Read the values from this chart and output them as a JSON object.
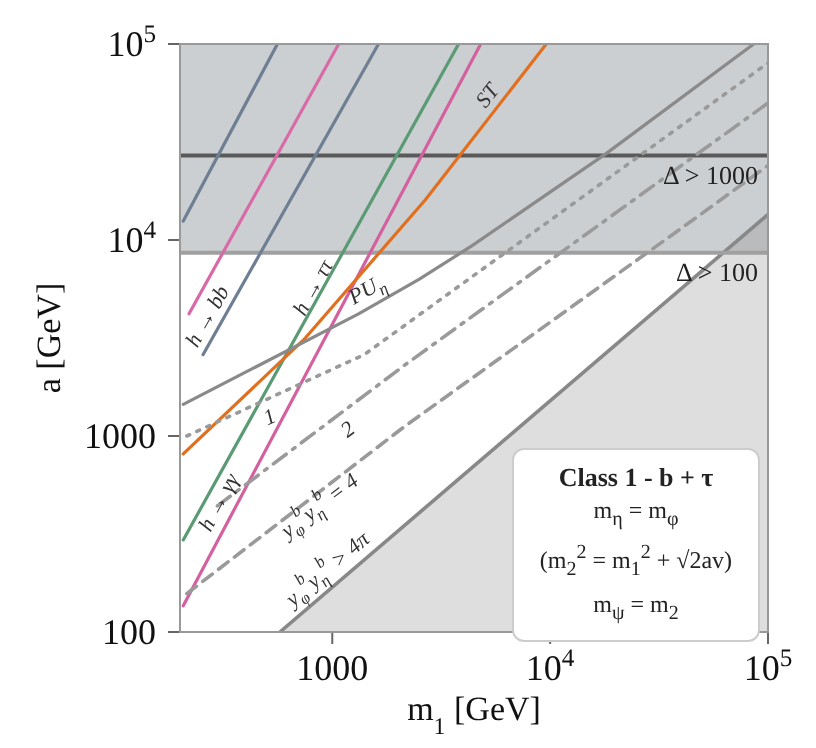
{
  "chart_data": {
    "type": "line",
    "xlabel": "m$_{1}$ [GeV]",
    "ylabel": "a [GeV]",
    "log": "xy",
    "xlim": [
      200,
      100000
    ],
    "ylim": [
      100,
      100000
    ],
    "xticks": [
      1000,
      {
        "value": 10000,
        "label": "10$^{4}$"
      },
      {
        "value": 100000,
        "label": "10$^{5}$"
      }
    ],
    "yticks": [
      100,
      1000,
      {
        "value": 10000,
        "label": "10$^{4}$"
      },
      {
        "value": 100000,
        "label": "10$^{5}$"
      }
    ],
    "series": [
      {
        "color": "#6f7f93",
        "x": [
          207,
          560
        ],
        "values": [
          12500,
          100000
        ]
      },
      {
        "color": "#d86aa8",
        "x": [
          220,
          1070
        ],
        "values": [
          4200,
          100000
        ]
      },
      {
        "name": "h → bb",
        "color": "#6f7f93",
        "x": [
          255,
          1630
        ],
        "values": [
          2600,
          100000
        ]
      },
      {
        "name": "h → ττ",
        "color": "#5a9a74",
        "x": [
          207,
          3800
        ],
        "values": [
          295,
          100000
        ]
      },
      {
        "name": "h → γγ",
        "color": "#d4619f",
        "x": [
          207,
          4800
        ],
        "values": [
          136,
          100000
        ]
      },
      {
        "name": "ST",
        "color": "#e0701f",
        "x": [
          207,
          740,
          2670,
          9600
        ],
        "values": [
          810,
          3100,
          16000,
          100000
        ]
      },
      {
        "name": "PU$_{η}$",
        "color": "#8a8a8a",
        "x": [
          207,
          1320,
          2500,
          4350,
          18000,
          86000
        ],
        "values": [
          1450,
          4200,
          6300,
          9300,
          27500,
          100000
        ]
      },
      {
        "name": "1",
        "color": "#9a9a9a",
        "line_style": "dotted",
        "x": [
          215,
          1400,
          100000
        ],
        "values": [
          1000,
          2600,
          80000
        ]
      },
      {
        "name": "2",
        "color": "#9a9a9a",
        "line_style": "dashdot",
        "x": [
          297,
          2150,
          100000
        ],
        "values": [
          440,
          2300,
          50000
        ]
      },
      {
        "name": "y$_{φ}$$^{b}$y$_{η}$$^{b}$ = 4",
        "color": "#9a9a9a",
        "line_style": "dashed",
        "x": [
          215,
          2150,
          45000,
          100000
        ],
        "values": [
          157,
          1120,
          12600,
          24000
        ]
      },
      {
        "name": "y$_{φ}$$^{b}$y$_{η}$$^{b}$ > 4π",
        "type": "area",
        "color": "#888888",
        "x": [
          575,
          100000
        ],
        "values": [
          100,
          13500
        ]
      }
    ],
    "ref_lines": [
      {
        "axis": "y",
        "value": 27000,
        "label": "Δ > 1000",
        "color": "#5a5a5a"
      },
      {
        "axis": "y",
        "value": 8600,
        "label": "Δ > 100",
        "color": "#a0a0a0"
      }
    ],
    "bands": [
      {
        "axis": "y",
        "from": 8600,
        "to": 100000,
        "color": "#8e9498"
      }
    ],
    "annotations": [
      "Class 1 - b + τ",
      "m$_{η}$ = m$_{φ}$",
      "(m$_{2}$$^{2}$ = m$_{1}$$^{2}$ + √2av)",
      "m$_{ψ}$ = m$_{2}$"
    ]
  }
}
